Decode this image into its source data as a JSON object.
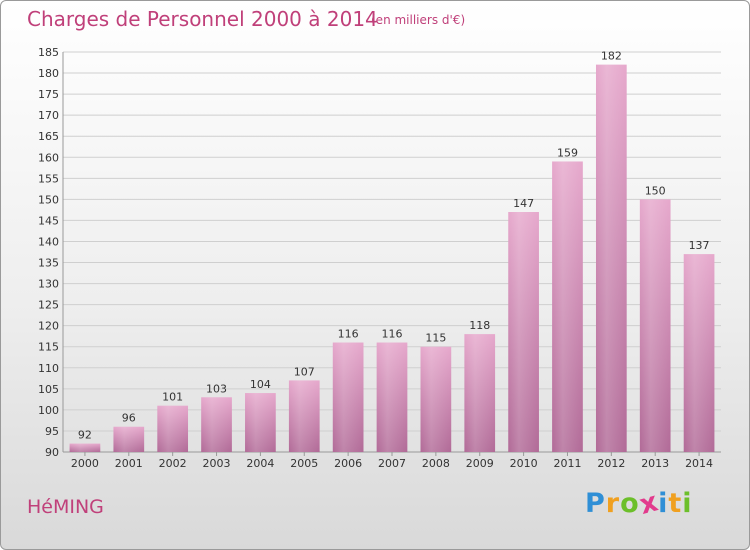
{
  "title": "Charges de Personnel 2000 à 2014",
  "subtitle": "(en milliers d'€)",
  "commune": "HéMING",
  "logo": {
    "letters": [
      "P",
      "r",
      "o",
      "x",
      "i",
      "t",
      "i"
    ],
    "colors": [
      "#2f8fd6",
      "#f0a020",
      "#6cbf2a",
      "#e23a8c",
      "#2f8fd6",
      "#f0a020",
      "#6cbf2a"
    ]
  },
  "colors": {
    "bar_top": "#e6a8cc",
    "bar_bottom": "#b16a97",
    "accent": "#c0407a"
  },
  "chart_data": {
    "type": "bar",
    "title": "Charges de Personnel 2000 à 2014",
    "subtitle": "(en milliers d'€)",
    "categories": [
      "2000",
      "2001",
      "2002",
      "2003",
      "2004",
      "2005",
      "2006",
      "2007",
      "2008",
      "2009",
      "2010",
      "2011",
      "2012",
      "2013",
      "2014"
    ],
    "values": [
      92,
      96,
      101,
      103,
      104,
      107,
      116,
      116,
      115,
      118,
      147,
      159,
      182,
      150,
      137
    ],
    "ylim": [
      90,
      185
    ],
    "yticks": [
      90,
      95,
      100,
      105,
      110,
      115,
      120,
      125,
      130,
      135,
      140,
      145,
      150,
      155,
      160,
      165,
      170,
      175,
      180,
      185
    ],
    "grid": true,
    "legend": "none"
  }
}
